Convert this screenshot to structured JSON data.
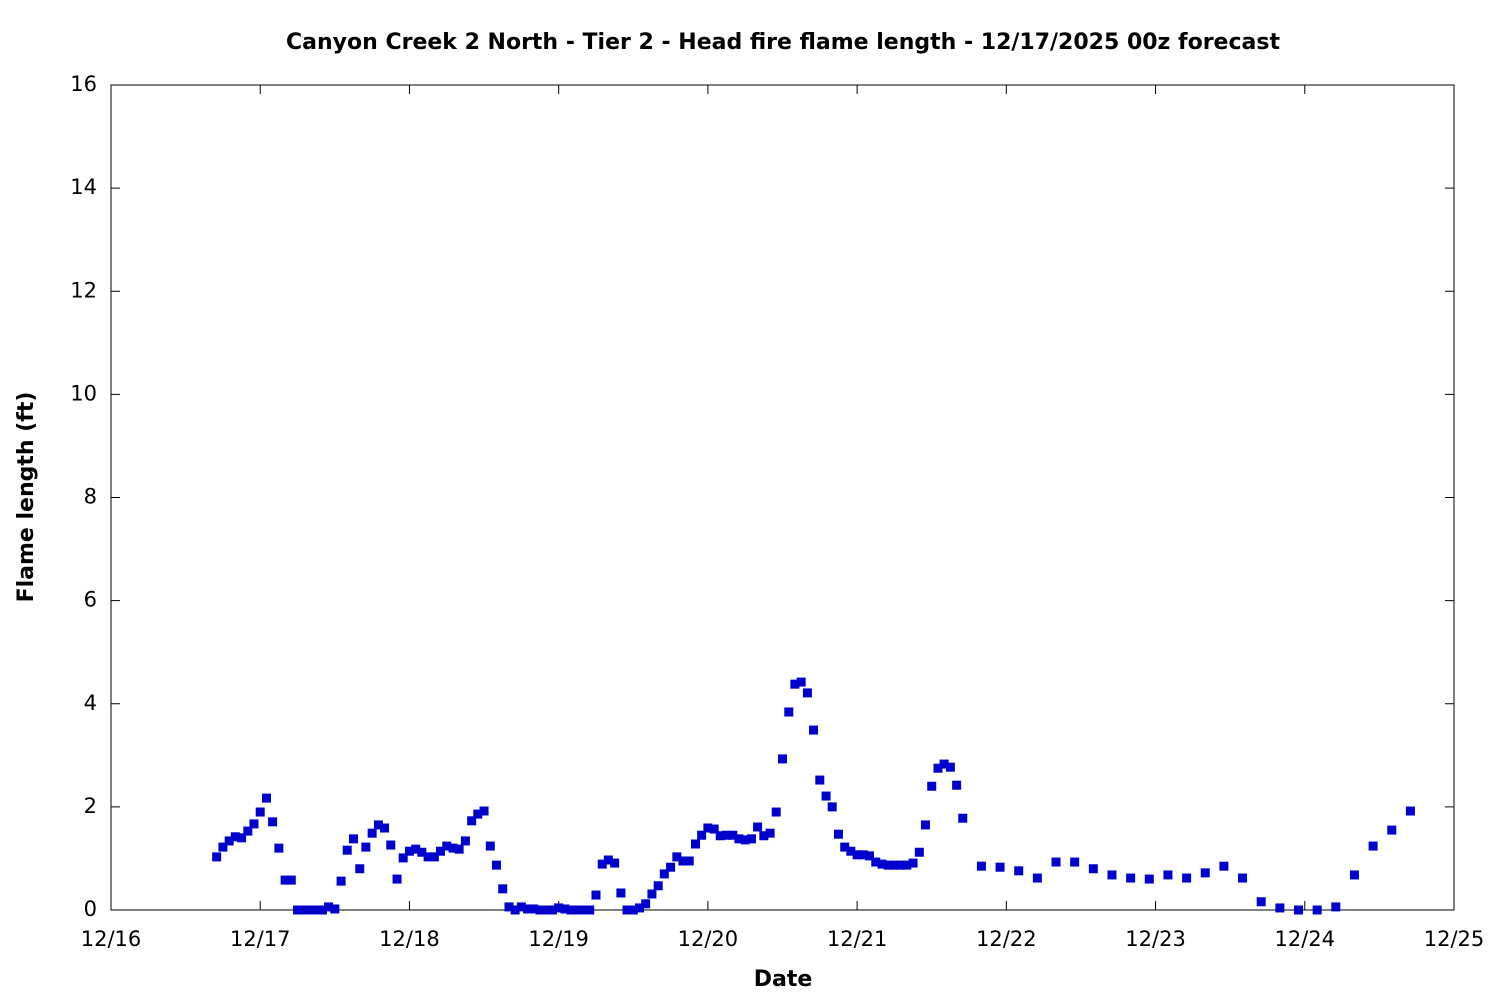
{
  "chart_data": {
    "type": "scatter",
    "title": "Canyon Creek 2 North - Tier 2 - Head fire flame length - 12/17/2025 00z forecast",
    "xlabel": "Date",
    "ylabel": "Flame length (ft)",
    "xlim": [
      16,
      25
    ],
    "ylim": [
      0,
      16
    ],
    "xticks": [
      {
        "value": 16,
        "label": "12/16"
      },
      {
        "value": 17,
        "label": "12/17"
      },
      {
        "value": 18,
        "label": "12/18"
      },
      {
        "value": 19,
        "label": "12/19"
      },
      {
        "value": 20,
        "label": "12/20"
      },
      {
        "value": 21,
        "label": "12/21"
      },
      {
        "value": 22,
        "label": "12/22"
      },
      {
        "value": 23,
        "label": "12/23"
      },
      {
        "value": 24,
        "label": "12/24"
      },
      {
        "value": 25,
        "label": "12/25"
      }
    ],
    "yticks": [
      0,
      2,
      4,
      6,
      8,
      10,
      12,
      14,
      16
    ],
    "color": "#0000cc",
    "x": [
      16.708,
      16.75,
      16.792,
      16.833,
      16.875,
      16.917,
      16.958,
      17,
      17.042,
      17.083,
      17.125,
      17.167,
      17.208,
      17.25,
      17.292,
      17.333,
      17.375,
      17.417,
      17.458,
      17.5,
      17.542,
      17.583,
      17.625,
      17.667,
      17.708,
      17.75,
      17.792,
      17.833,
      17.875,
      17.917,
      17.958,
      18,
      18.042,
      18.083,
      18.125,
      18.167,
      18.208,
      18.25,
      18.292,
      18.333,
      18.375,
      18.417,
      18.458,
      18.5,
      18.542,
      18.583,
      18.625,
      18.667,
      18.708,
      18.75,
      18.792,
      18.833,
      18.875,
      18.917,
      18.958,
      19,
      19.042,
      19.083,
      19.125,
      19.167,
      19.208,
      19.25,
      19.292,
      19.333,
      19.375,
      19.417,
      19.458,
      19.5,
      19.542,
      19.583,
      19.625,
      19.667,
      19.708,
      19.75,
      19.792,
      19.833,
      19.875,
      19.917,
      19.958,
      20,
      20.042,
      20.083,
      20.125,
      20.167,
      20.208,
      20.25,
      20.292,
      20.333,
      20.375,
      20.417,
      20.458,
      20.5,
      20.542,
      20.583,
      20.625,
      20.667,
      20.708,
      20.75,
      20.792,
      20.833,
      20.875,
      20.917,
      20.958,
      21,
      21.042,
      21.083,
      21.125,
      21.167,
      21.208,
      21.25,
      21.292,
      21.333,
      21.375,
      21.417,
      21.458,
      21.5,
      21.542,
      21.583,
      21.625,
      21.667,
      21.708,
      21.833,
      21.958,
      22.083,
      22.208,
      22.333,
      22.458,
      22.583,
      22.708,
      22.833,
      22.958,
      23.083,
      23.208,
      23.333,
      23.458,
      23.583,
      23.708,
      23.833,
      23.958,
      24.083,
      24.208,
      24.333,
      24.458,
      24.583,
      24.708
    ],
    "values": [
      1.03,
      1.22,
      1.34,
      1.42,
      1.4,
      1.53,
      1.67,
      1.9,
      2.17,
      1.71,
      1.2,
      0.58,
      0.58,
      0,
      0,
      0,
      0,
      0,
      0.06,
      0.02,
      0.56,
      1.16,
      1.38,
      0.8,
      1.22,
      1.49,
      1.65,
      1.59,
      1.26,
      0.6,
      1.01,
      1.14,
      1.18,
      1.12,
      1.03,
      1.03,
      1.14,
      1.24,
      1.2,
      1.18,
      1.34,
      1.73,
      1.86,
      1.92,
      1.24,
      0.87,
      0.41,
      0.06,
      0,
      0.06,
      0.02,
      0.02,
      0,
      0,
      0,
      0.04,
      0.02,
      0,
      0,
      0,
      0,
      0.29,
      0.89,
      0.97,
      0.91,
      0.33,
      0,
      0,
      0.04,
      0.12,
      0.31,
      0.47,
      0.7,
      0.83,
      1.03,
      0.95,
      0.95,
      1.28,
      1.45,
      1.59,
      1.57,
      1.44,
      1.45,
      1.45,
      1.38,
      1.36,
      1.38,
      1.61,
      1.44,
      1.49,
      1.9,
      2.93,
      3.84,
      4.38,
      4.42,
      4.21,
      3.49,
      2.52,
      2.21,
      2.0,
      1.47,
      1.22,
      1.14,
      1.07,
      1.07,
      1.05,
      0.93,
      0.89,
      0.87,
      0.87,
      0.87,
      0.87,
      0.91,
      1.12,
      1.65,
      2.4,
      2.75,
      2.83,
      2.77,
      2.42,
      1.78,
      0.85,
      0.83,
      0.76,
      0.62,
      0.93,
      0.93,
      0.8,
      0.68,
      0.62,
      0.6,
      0.68,
      0.62,
      0.72,
      0.85,
      0.62,
      0.16,
      0.04,
      0,
      0,
      0.06,
      0.68,
      1.24,
      1.55,
      1.92
    ]
  }
}
